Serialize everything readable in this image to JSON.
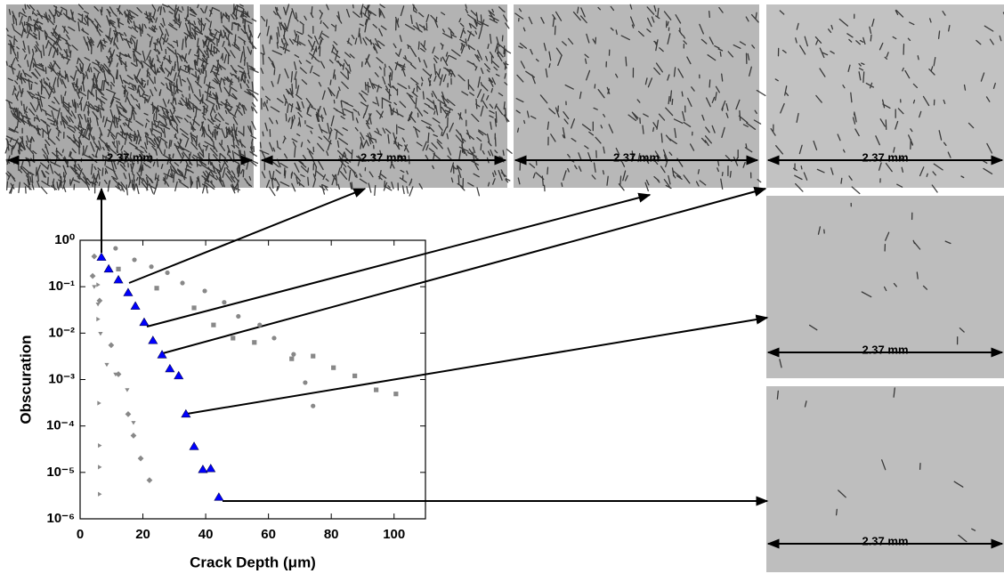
{
  "chart_data": {
    "type": "scatter",
    "xlabel": "Crack Depth (μm)",
    "ylabel": "Obscuration",
    "xlim": [
      0,
      110
    ],
    "xticks": [
      0,
      20,
      40,
      60,
      80,
      100
    ],
    "ylim": [
      1e-06,
      1
    ],
    "yscale": "log",
    "yticks": [
      {
        "value": 1e-06,
        "label": "10⁻⁶"
      },
      {
        "value": 1e-05,
        "label": "10⁻⁵"
      },
      {
        "value": 0.0001,
        "label": "10⁻⁴"
      },
      {
        "value": 0.001,
        "label": "10⁻³"
      },
      {
        "value": 0.01,
        "label": "10⁻²"
      },
      {
        "value": 0.1,
        "label": "10⁻¹"
      },
      {
        "value": 1,
        "label": "10⁰"
      }
    ],
    "series": [
      {
        "color": "#888888",
        "marker": "square",
        "x": [
          12.2,
          24.4,
          36.3,
          42.5,
          48.7,
          55.5,
          67.4,
          74.2,
          80.7,
          87.5,
          94.3,
          100.6
        ],
        "values": [
          0.24,
          0.093,
          0.035,
          0.015,
          0.0078,
          0.0063,
          0.0028,
          0.0032,
          0.0018,
          0.0012,
          0.0006,
          0.00049
        ]
      },
      {
        "color": "#888888",
        "marker": "circle",
        "x": [
          11.3,
          17.3,
          22.7,
          27.8,
          32.6,
          39.7,
          45.9,
          50.4,
          57.2,
          61.8,
          68,
          71.7,
          74.2
        ],
        "values": [
          0.67,
          0.38,
          0.27,
          0.2,
          0.12,
          0.081,
          0.046,
          0.023,
          0.015,
          0.0078,
          0.0035,
          0.00086,
          0.00027
        ]
      },
      {
        "color": "#888888",
        "marker": "diamond",
        "x": [
          4.5,
          4,
          6.2,
          9.9,
          12.2,
          15.3,
          17,
          19.3,
          22.1
        ],
        "values": [
          0.45,
          0.17,
          0.05,
          0.0055,
          0.0013,
          0.00018,
          6.2e-05,
          2e-05,
          6.8e-06
        ]
      },
      {
        "color": "#888888",
        "marker": "triangle-down",
        "x": [
          4.5,
          5.7,
          6.5,
          8.5,
          11.3,
          15,
          17
        ],
        "values": [
          0.1,
          0.042,
          0.0098,
          0.0021,
          0.0013,
          0.0006,
          0.000118
        ]
      },
      {
        "color": "#888888",
        "marker": "triangle-right",
        "x": [
          5.7,
          5.7,
          6,
          6.2,
          6.2,
          6.2
        ],
        "values": [
          0.11,
          0.02,
          0.00031,
          3.8e-05,
          1.3e-05,
          3.4e-06
        ]
      },
      {
        "color": "#0000ff",
        "marker": "triangle-up",
        "x": [
          6.8,
          9.1,
          12.2,
          15.3,
          17.6,
          20.4,
          23.2,
          26.1,
          28.6,
          31.4,
          33.7,
          36.3,
          39.1,
          41.6,
          44.2
        ],
        "values": [
          0.43,
          0.24,
          0.14,
          0.074,
          0.038,
          0.017,
          0.0069,
          0.0034,
          0.0017,
          0.0012,
          0.00018,
          3.6e-05,
          1.15e-05,
          1.2e-05,
          2.9e-06
        ]
      }
    ]
  },
  "images": [
    {
      "scale_label": "2.37 mm"
    },
    {
      "scale_label": "2.37 mm"
    },
    {
      "scale_label": "2.37 mm"
    },
    {
      "scale_label": "2.37 mm"
    },
    {
      "scale_label": "2.37 mm"
    },
    {
      "scale_label": "2.37 mm"
    }
  ]
}
